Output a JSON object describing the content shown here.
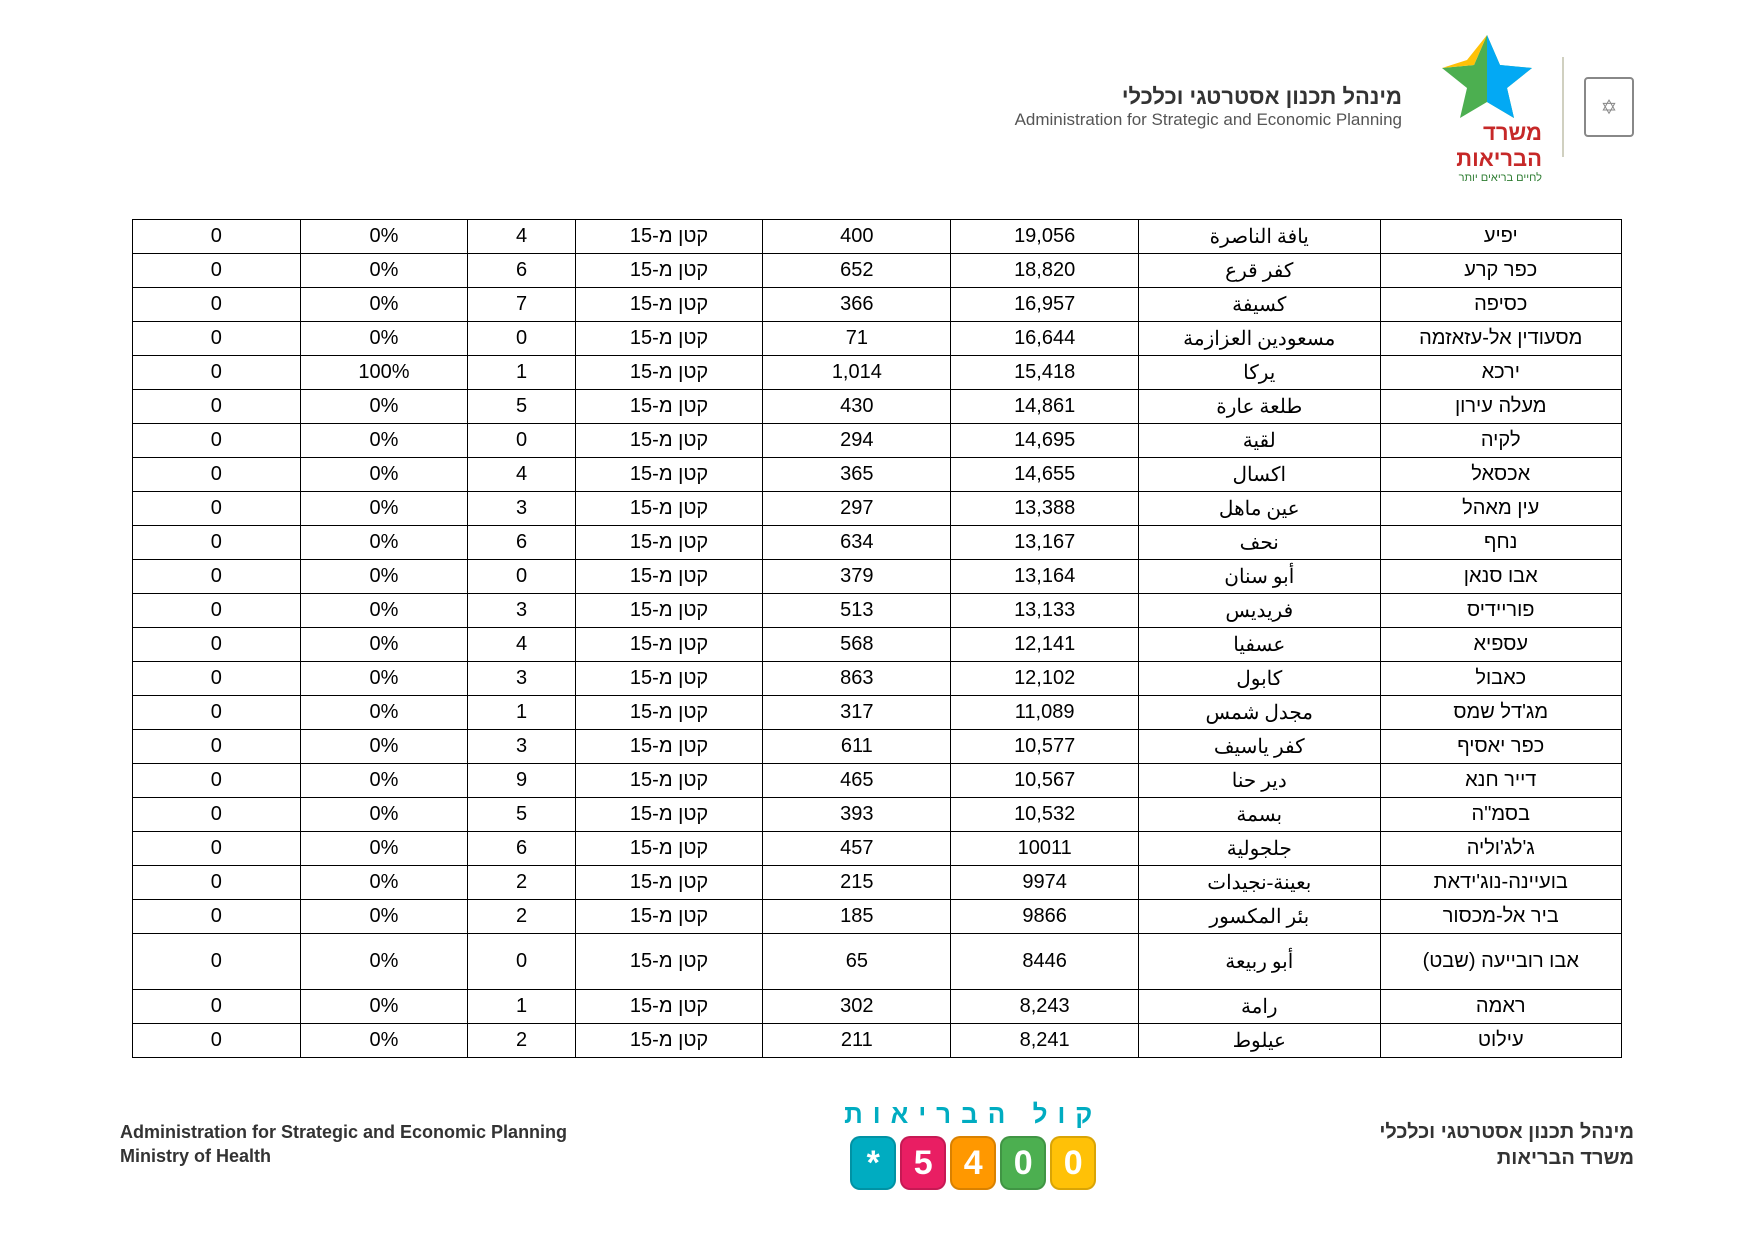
{
  "header": {
    "hebrew": "מינהל תכנון אסטרטגי וכלכלי",
    "english": "Administration for Strategic and Economic Planning",
    "brand_line1": "משרד",
    "brand_line2": "הבריאות",
    "brand_sub": "לחיים בריאים יותר"
  },
  "footer": {
    "left_line1": "Administration for Strategic and Economic Planning",
    "left_line2": "Ministry of Health",
    "center_top": "קול  הבריאות",
    "badge_chars": [
      "*",
      "5",
      "4",
      "0",
      "0"
    ],
    "badge_colors": [
      "#00acc1",
      "#e91e63",
      "#ff9800",
      "#4caf50",
      "#ffc107"
    ],
    "right_line1": "מינהל תכנון אסטרטגי וכלכלי",
    "right_line2": "משרד הבריאות"
  },
  "table": {
    "small_label": "קטן מ-15",
    "rows": [
      {
        "c1": "0",
        "c2": "0%",
        "c3": "4",
        "c5": "400",
        "c6": "19,056",
        "c7": "يافة الناصرة",
        "c8": "יפיע",
        "tall": false
      },
      {
        "c1": "0",
        "c2": "0%",
        "c3": "6",
        "c5": "652",
        "c6": "18,820",
        "c7": "كفر قرع",
        "c8": "כפר קרע",
        "tall": false
      },
      {
        "c1": "0",
        "c2": "0%",
        "c3": "7",
        "c5": "366",
        "c6": "16,957",
        "c7": "كسيفة",
        "c8": "כסיפה",
        "tall": false
      },
      {
        "c1": "0",
        "c2": "0%",
        "c3": "0",
        "c5": "71",
        "c6": "16,644",
        "c7": "مسعودين العزازمة",
        "c8": "מסעודין אל-עזאזמה",
        "tall": false
      },
      {
        "c1": "0",
        "c2": "100%",
        "c3": "1",
        "c5": "1,014",
        "c6": "15,418",
        "c7": "يركا",
        "c8": "ירכא",
        "tall": false
      },
      {
        "c1": "0",
        "c2": "0%",
        "c3": "5",
        "c5": "430",
        "c6": "14,861",
        "c7": "طلعة عارة",
        "c8": "מעלה עירון",
        "tall": false
      },
      {
        "c1": "0",
        "c2": "0%",
        "c3": "0",
        "c5": "294",
        "c6": "14,695",
        "c7": "لقية",
        "c8": "לקיה",
        "tall": false
      },
      {
        "c1": "0",
        "c2": "0%",
        "c3": "4",
        "c5": "365",
        "c6": "14,655",
        "c7": "اكسال",
        "c8": "אכסאל",
        "tall": false
      },
      {
        "c1": "0",
        "c2": "0%",
        "c3": "3",
        "c5": "297",
        "c6": "13,388",
        "c7": "عين ماهل",
        "c8": "עין מאהל",
        "tall": false
      },
      {
        "c1": "0",
        "c2": "0%",
        "c3": "6",
        "c5": "634",
        "c6": "13,167",
        "c7": "نحف",
        "c8": "נחף",
        "tall": false
      },
      {
        "c1": "0",
        "c2": "0%",
        "c3": "0",
        "c5": "379",
        "c6": "13,164",
        "c7": "أبو سنان",
        "c8": "אבו סנאן",
        "tall": false
      },
      {
        "c1": "0",
        "c2": "0%",
        "c3": "3",
        "c5": "513",
        "c6": "13,133",
        "c7": "فريديس",
        "c8": "פוריידיס",
        "tall": false
      },
      {
        "c1": "0",
        "c2": "0%",
        "c3": "4",
        "c5": "568",
        "c6": "12,141",
        "c7": "عسفيا",
        "c8": "עספיא",
        "tall": false
      },
      {
        "c1": "0",
        "c2": "0%",
        "c3": "3",
        "c5": "863",
        "c6": "12,102",
        "c7": "كابول",
        "c8": "כאבול",
        "tall": false
      },
      {
        "c1": "0",
        "c2": "0%",
        "c3": "1",
        "c5": "317",
        "c6": "11,089",
        "c7": "مجدل شمس",
        "c8": "מג'דל שמס",
        "tall": false
      },
      {
        "c1": "0",
        "c2": "0%",
        "c3": "3",
        "c5": "611",
        "c6": "10,577",
        "c7": "كفر ياسيف",
        "c8": "כפר יאסיף",
        "tall": false
      },
      {
        "c1": "0",
        "c2": "0%",
        "c3": "9",
        "c5": "465",
        "c6": "10,567",
        "c7": "دير حنا",
        "c8": "דייר חנא",
        "tall": false
      },
      {
        "c1": "0",
        "c2": "0%",
        "c3": "5",
        "c5": "393",
        "c6": "10,532",
        "c7": "بسمة",
        "c8": "בסמ\"ה",
        "tall": false
      },
      {
        "c1": "0",
        "c2": "0%",
        "c3": "6",
        "c5": "457",
        "c6": "10011",
        "c7": "جلجولية",
        "c8": "ג'לג'וליה",
        "tall": false
      },
      {
        "c1": "0",
        "c2": "0%",
        "c3": "2",
        "c5": "215",
        "c6": "9974",
        "c7": "بعينة-نجيدات",
        "c8": "בועיינה-נוג'ידאת",
        "tall": false
      },
      {
        "c1": "0",
        "c2": "0%",
        "c3": "2",
        "c5": "185",
        "c6": "9866",
        "c7": "بئر المكسور",
        "c8": "ביר אל-מכסור",
        "tall": false
      },
      {
        "c1": "0",
        "c2": "0%",
        "c3": "0",
        "c5": "65",
        "c6": "8446",
        "c7": "أبو ربيعة",
        "c8": "אבו רובייעה (שבט)",
        "tall": true
      },
      {
        "c1": "0",
        "c2": "0%",
        "c3": "1",
        "c5": "302",
        "c6": "8,243",
        "c7": "رامة",
        "c8": "ראמה",
        "tall": false
      },
      {
        "c1": "0",
        "c2": "0%",
        "c3": "2",
        "c5": "211",
        "c6": "8,241",
        "c7": "عيلوط",
        "c8": "עילוט",
        "tall": false
      }
    ]
  }
}
